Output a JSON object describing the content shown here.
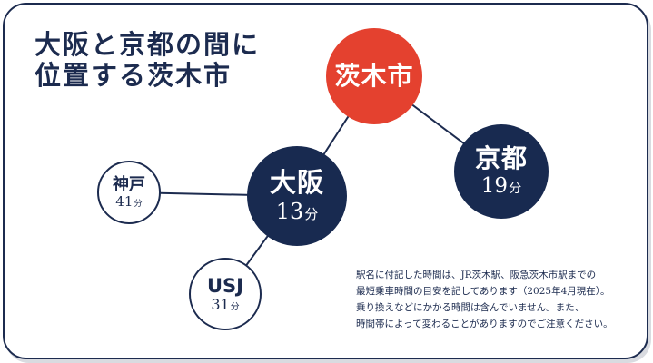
{
  "title": {
    "line1": "大阪と京都の間に",
    "line2": "位置する茨木市"
  },
  "nodes": {
    "ibaraki": {
      "name": "茨木市"
    },
    "kyoto": {
      "name": "京都",
      "time": "19",
      "unit": "分"
    },
    "osaka": {
      "name": "大阪",
      "time": "13",
      "unit": "分"
    },
    "kobe": {
      "name": "神戸",
      "time": "41",
      "unit": "分"
    },
    "usj": {
      "name": "USJ",
      "time": "31",
      "unit": "分"
    }
  },
  "note": {
    "line1": "駅名に付記した時間は、JR茨木駅、阪急茨木市駅までの",
    "line2": "最短乗車時間の目安を記してあります（2025年4月現在）。",
    "line3": "乗り換えなどにかかる時間は含んでいません。また、",
    "line4": "時間帯によって変わることがありますのでご注意ください。"
  },
  "colors": {
    "navy": "#1c2b4f",
    "red": "#e4412f",
    "node_dark": "#182a50"
  }
}
